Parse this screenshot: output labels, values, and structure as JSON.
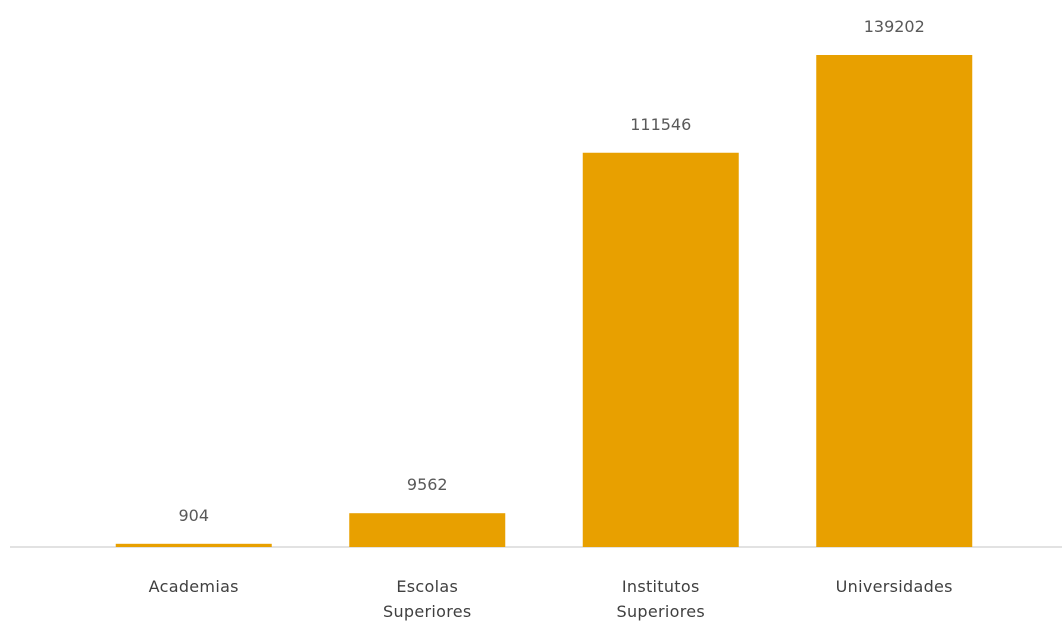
{
  "chart_data": {
    "type": "bar",
    "categories": [
      "Academias",
      "Escolas Superiores",
      "Institutos Superiores",
      "Universidades"
    ],
    "values": [
      904,
      9562,
      111546,
      139202
    ],
    "color": "#e8a000"
  }
}
